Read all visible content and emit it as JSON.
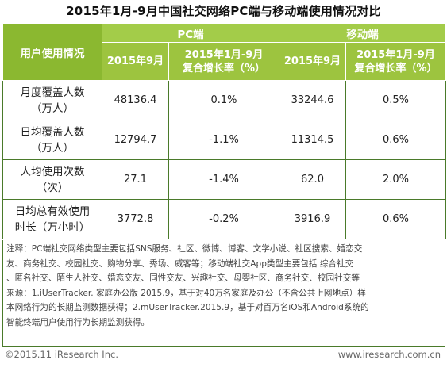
{
  "title": "2015年1月-9月中国社交网络PC端与移动端使用情况对比",
  "colors": {
    "header_green": "#8bb830",
    "border_green": "#4a7a2a"
  },
  "chart_data": {
    "type": "table",
    "row_header_label": "用户使用情况",
    "groups": [
      "PC端",
      "移动端"
    ],
    "columns": [
      "2015年9月",
      "2015年1月-9月复合增长率（%）"
    ],
    "columns_lines": [
      [
        "2015年9月"
      ],
      [
        "2015年1月-9月",
        "复合增长率（%）"
      ]
    ],
    "rows": [
      {
        "label_lines": [
          "月度覆盖人数",
          "（万人）"
        ],
        "values": [
          "48136.4",
          "0.1%",
          "33244.6",
          "0.5%"
        ]
      },
      {
        "label_lines": [
          "日均覆盖人数",
          "（万人）"
        ],
        "values": [
          "12794.7",
          "-1.1%",
          "11314.5",
          "0.6%"
        ]
      },
      {
        "label_lines": [
          "人均使用次数",
          "（次）"
        ],
        "values": [
          "27.1",
          "-1.4%",
          "62.0",
          "2.0%"
        ]
      },
      {
        "label_lines": [
          "日均总有效使用",
          "时长（万小时）"
        ],
        "values": [
          "3772.8",
          "-0.2%",
          "3916.9",
          "0.6%"
        ]
      }
    ]
  },
  "note_lines": [
    "注释：PC端社交网络类型主要包括SNS服务、社区、微博、博客、文学小说、社区搜索、婚恋交",
    "友、商务社交、校园社交、购物分享、秀场、威客等；移动端社交App类型主要包括 综合社交",
    "、匿名社交、陌生人社交、婚恋交友、同性交友、兴趣社交、母婴社区、商务社交、校园社交等",
    "来源：1.iUserTracker. 家庭办公版 2015.9，基于对40万名家庭及办公（不含公共上网地点）样",
    "本网络行为的长期监测数据获得；2.mUserTracker.2015.9，基于对百万名iOS和Android系统的",
    "智能终端用户使用行为长期监测获得。"
  ],
  "footer": {
    "copyright": "©2015.11 iResearch Inc.",
    "website": "www.iresearch.com.cn"
  }
}
